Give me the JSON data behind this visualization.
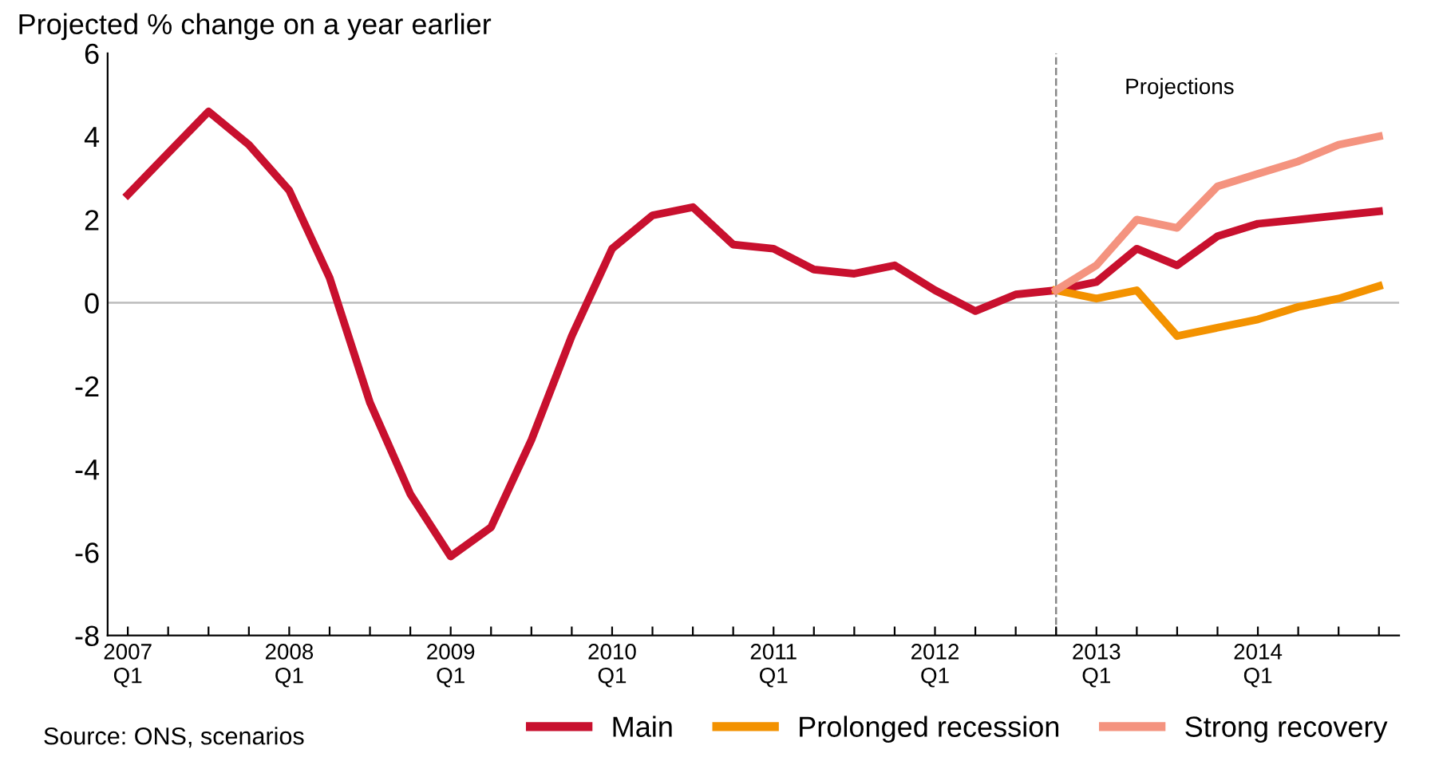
{
  "chart_data": {
    "type": "line",
    "title": "Projected % change on a year earlier",
    "categories": [
      "2007\nQ1",
      null,
      null,
      null,
      "2008\nQ1",
      null,
      null,
      null,
      "2009\nQ1",
      null,
      null,
      null,
      "2010\nQ1",
      null,
      null,
      null,
      "2011\nQ1",
      null,
      null,
      null,
      "2012\nQ1",
      null,
      null,
      null,
      "2013\nQ1",
      null,
      null,
      null,
      "2014\nQ1",
      null,
      null,
      null
    ],
    "series": [
      {
        "name": "Main",
        "color": "#c8102e",
        "values": [
          2.6,
          3.6,
          4.6,
          3.8,
          2.7,
          0.6,
          -2.4,
          -4.6,
          -6.1,
          -5.4,
          -3.3,
          -0.8,
          1.3,
          2.1,
          2.3,
          1.4,
          1.3,
          0.8,
          0.7,
          0.9,
          0.3,
          -0.2,
          0.2,
          0.3,
          0.5,
          1.3,
          0.9,
          1.6,
          1.9,
          2.0,
          2.1,
          2.2
        ]
      },
      {
        "name": "Prolonged recession",
        "color": "#f39200",
        "values": [
          null,
          null,
          null,
          null,
          null,
          null,
          null,
          null,
          null,
          null,
          null,
          null,
          null,
          null,
          null,
          null,
          null,
          null,
          null,
          null,
          null,
          null,
          null,
          0.3,
          0.1,
          0.3,
          -0.8,
          -0.6,
          -0.4,
          -0.1,
          0.1,
          0.4
        ]
      },
      {
        "name": "Strong recovery",
        "color": "#f4937f",
        "values": [
          null,
          null,
          null,
          null,
          null,
          null,
          null,
          null,
          null,
          null,
          null,
          null,
          null,
          null,
          null,
          null,
          null,
          null,
          null,
          null,
          null,
          null,
          null,
          0.3,
          0.9,
          2.0,
          1.8,
          2.8,
          3.1,
          3.4,
          3.8,
          4.0
        ]
      }
    ],
    "ylim": [
      -8,
      6
    ],
    "yticks": [
      -8,
      -6,
      -4,
      -2,
      0,
      2,
      4,
      6
    ],
    "ref_lines": [
      {
        "axis": "x",
        "label": "Projections",
        "color": "#888888",
        "line_style": "dashed"
      },
      {
        "axis": "y",
        "value": 0,
        "color": "#bbbbbb",
        "line_style": "solid"
      }
    ],
    "annotations": [
      "Source: ONS, scenarios"
    ],
    "legend": "bottom right",
    "grid": false,
    "marker": "none",
    "line_style": "solid"
  }
}
